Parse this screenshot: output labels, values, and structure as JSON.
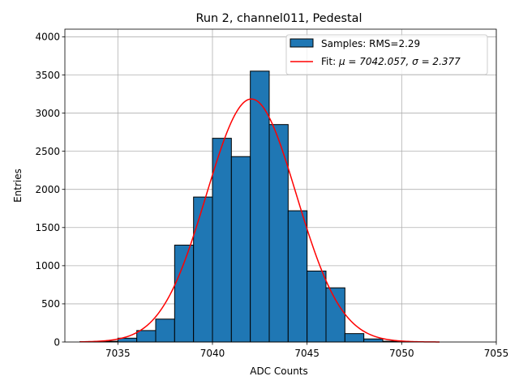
{
  "chart_data": {
    "type": "bar",
    "title": "Run 2, channel011, Pedestal",
    "xlabel": "ADC Counts",
    "ylabel": "Entries",
    "xlim": [
      7032.2,
      7055.0
    ],
    "ylim": [
      0,
      4100
    ],
    "xticks": [
      7035,
      7040,
      7045,
      7050,
      7055
    ],
    "yticks": [
      0,
      500,
      1000,
      1500,
      2000,
      2500,
      3000,
      3500,
      4000
    ],
    "grid": true,
    "legend_position": "top-right",
    "bin_edges": [
      7033,
      7034,
      7035,
      7036,
      7037,
      7038,
      7039,
      7040,
      7041,
      7042,
      7043,
      7044,
      7045,
      7046,
      7047,
      7048,
      7049,
      7050,
      7051,
      7052
    ],
    "series": [
      {
        "name": "Samples: RMS=2.29",
        "kind": "histogram",
        "color": "#1f77b4",
        "values": [
          5,
          10,
          50,
          150,
          300,
          1270,
          1900,
          2670,
          2430,
          3550,
          2850,
          1720,
          930,
          710,
          110,
          40,
          10,
          3,
          0
        ]
      },
      {
        "name_prefix": "Fit: ",
        "name_math": "μ = 7042.057, σ = 2.377",
        "kind": "gaussian-fit",
        "color": "#ff0000",
        "mu": 7042.057,
        "sigma": 2.377,
        "amplitude": 3185,
        "x_range": [
          7033,
          7052
        ]
      }
    ]
  }
}
